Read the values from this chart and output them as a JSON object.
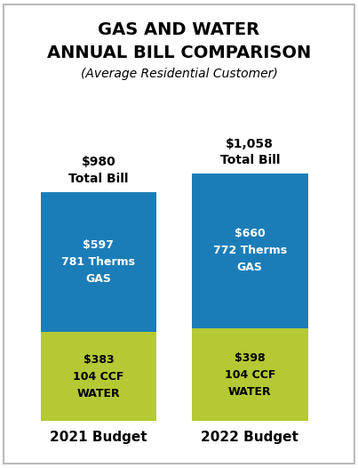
{
  "title_line1": "GAS AND WATER",
  "title_line2": "ANNUAL BILL COMPARISON",
  "subtitle": "(Average Residential Customer)",
  "categories": [
    "2021 Budget",
    "2022 Budget"
  ],
  "gas_values": [
    597,
    660
  ],
  "water_values": [
    383,
    398
  ],
  "total_labels": [
    "$980\nTotal Bill",
    "$1,058\nTotal Bill"
  ],
  "gas_labels": [
    "$597\n781 Therms\nGAS",
    "$660\n772 Therms\nGAS"
  ],
  "water_labels": [
    "$383\n104 CCF\nWATER",
    "$398\n104 CCF\nWATER"
  ],
  "gas_color": "#1b7db8",
  "water_color": "#b5c934",
  "background_color": "#ffffff",
  "border_color": "#bbbbbb",
  "title_fontsize": 14,
  "subtitle_fontsize": 10,
  "label_fontsize": 9,
  "category_fontsize": 11,
  "total_fontsize": 10
}
